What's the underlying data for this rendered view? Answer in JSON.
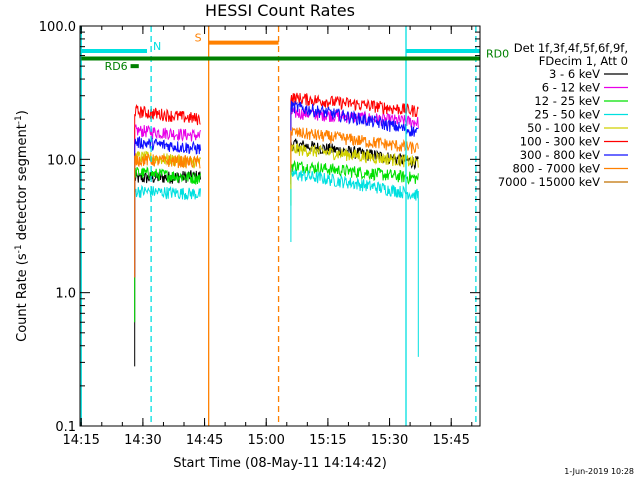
{
  "chart_data": {
    "type": "line",
    "title": "HESSI Count Rates",
    "xlabel": "Start Time (08-May-11 14:14:42)",
    "ylabel_main": "Count Rate (s",
    "ylabel_exp1": "-1",
    "ylabel_mid": " detector segment",
    "ylabel_exp2": "-1",
    "ylabel_close": ")",
    "yscale": "log",
    "ylim": [
      0.1,
      100
    ],
    "xlim": [
      "14:15",
      "15:52"
    ],
    "x_ticks": [
      "14:15",
      "14:30",
      "14:45",
      "15:00",
      "15:15",
      "15:30",
      "15:45"
    ],
    "y_ticks": [
      "0.1",
      "1.0",
      "10.0",
      "100.0"
    ],
    "timestamp": "1-Jun-2019 10:28",
    "legend": {
      "header": [
        "Det 1f,3f,4f,5f,6f,9f,",
        "FDecim 1, Att 0"
      ],
      "position": "right"
    },
    "series": [
      {
        "name": "3 - 6 keV",
        "color": "#000000",
        "segment1": [
          7.2,
          7.5
        ],
        "segment2": [
          13.0,
          9.5
        ]
      },
      {
        "name": "6 - 12 keV",
        "color": "#e800e8",
        "segment1": [
          16.5,
          15.0
        ],
        "segment2": [
          22.5,
          19.0
        ]
      },
      {
        "name": "12 - 25 keV",
        "color": "#00e000",
        "segment1": [
          8.0,
          7.2
        ],
        "segment2": [
          9.0,
          7.2
        ]
      },
      {
        "name": "25 - 50 keV",
        "color": "#00e0e0",
        "segment1": [
          5.8,
          5.5
        ],
        "segment2": [
          7.8,
          5.4
        ]
      },
      {
        "name": "50 - 100 keV",
        "color": "#d0d000",
        "segment1": [
          10.5,
          9.5
        ],
        "segment2": [
          12.0,
          9.5
        ]
      },
      {
        "name": "100 - 300 keV",
        "color": "#ff0000",
        "segment1": [
          23.0,
          20.0
        ],
        "segment2": [
          29.0,
          23.0
        ]
      },
      {
        "name": "300 - 800 keV",
        "color": "#1010ff",
        "segment1": [
          13.5,
          12.0
        ],
        "segment2": [
          25.0,
          16.0
        ]
      },
      {
        "name": "800 - 7000 keV",
        "color": "#ff8000",
        "segment1": [
          10.0,
          9.5
        ],
        "segment2": [
          16.0,
          12.0
        ]
      },
      {
        "name": "7000 - 15000 keV",
        "color": "#c07000",
        "segment1": [
          null,
          null
        ],
        "segment2": [
          null,
          null
        ]
      }
    ],
    "segment1_range": [
      "14:28",
      "14:44"
    ],
    "segment2_range": [
      "15:06",
      "15:37"
    ],
    "attenuator_flags": [
      {
        "label": "N",
        "color": "#00e0e0",
        "value": 65,
        "x_from": "14:15",
        "x_to": "14:31"
      },
      {
        "label": "RD0",
        "color": "#008000",
        "value": 57,
        "x_from": "14:15",
        "x_to": "15:52"
      },
      {
        "label": "RD6",
        "color": "#008000",
        "value": 50,
        "x_from": "14:27",
        "x_to": "14:29"
      },
      {
        "label": "S",
        "color": "#ff8000",
        "value": 75,
        "x_from": "14:46",
        "x_to": "15:03"
      },
      {
        "label": "",
        "color": "#00e0e0",
        "value": 65,
        "x_from": "15:34",
        "x_to": "15:52"
      }
    ],
    "vertical_markers": [
      {
        "time": "14:15",
        "color": "#00e0e0",
        "style": "solid"
      },
      {
        "time": "14:32",
        "color": "#00e0e0",
        "style": "dashed"
      },
      {
        "time": "14:46",
        "color": "#ff8000",
        "style": "solid"
      },
      {
        "time": "15:03",
        "color": "#ff8000",
        "style": "dashed"
      },
      {
        "time": "15:34",
        "color": "#00e0e0",
        "style": "solid"
      },
      {
        "time": "15:51",
        "color": "#00e0e0",
        "style": "dashed"
      }
    ],
    "grid": false
  }
}
